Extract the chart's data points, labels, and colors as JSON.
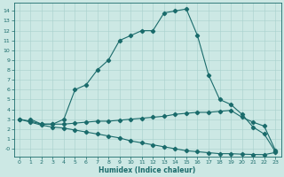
{
  "xlabel": "Humidex (Indice chaleur)",
  "bg_color": "#cce8e4",
  "line_color": "#1a6b6b",
  "grid_color": "#a8d0cc",
  "xlim": [
    -0.5,
    23.5
  ],
  "ylim": [
    -0.8,
    14.8
  ],
  "xticks": [
    0,
    1,
    2,
    3,
    4,
    5,
    6,
    7,
    8,
    9,
    10,
    11,
    12,
    13,
    14,
    15,
    16,
    17,
    18,
    19,
    20,
    21,
    22,
    23
  ],
  "yticks": [
    0,
    1,
    2,
    3,
    4,
    5,
    6,
    7,
    8,
    9,
    10,
    11,
    12,
    13,
    14
  ],
  "ytick_labels": [
    "-0",
    "1",
    "2",
    "3",
    "4",
    "5",
    "6",
    "7",
    "8",
    "9",
    "10",
    "11",
    "12",
    "13",
    "14"
  ],
  "line1_x": [
    1,
    2,
    3,
    4,
    5,
    6,
    7,
    8,
    9,
    10,
    11,
    12,
    13,
    14,
    15,
    16,
    17,
    18,
    19,
    20,
    21,
    22,
    23
  ],
  "line1_y": [
    3.0,
    2.5,
    2.5,
    3.0,
    6.0,
    6.5,
    8.0,
    9.0,
    11.0,
    11.5,
    12.0,
    12.0,
    13.8,
    14.0,
    14.2,
    11.5,
    7.5,
    5.0,
    4.5,
    3.5,
    2.2,
    1.5,
    -0.3
  ],
  "line2_x": [
    0,
    1,
    2,
    3,
    4,
    5,
    6,
    7,
    8,
    9,
    10,
    11,
    12,
    13,
    14,
    15,
    16,
    17,
    18,
    19,
    20,
    21,
    22,
    23
  ],
  "line2_y": [
    3.0,
    2.8,
    2.5,
    2.5,
    2.5,
    2.6,
    2.7,
    2.8,
    2.8,
    2.9,
    3.0,
    3.1,
    3.2,
    3.3,
    3.5,
    3.6,
    3.7,
    3.7,
    3.8,
    3.9,
    3.2,
    2.7,
    2.3,
    -0.15
  ],
  "line3_x": [
    0,
    1,
    2,
    3,
    4,
    5,
    6,
    7,
    8,
    9,
    10,
    11,
    12,
    13,
    14,
    15,
    16,
    17,
    18,
    19,
    20,
    21,
    22,
    23
  ],
  "line3_y": [
    3.0,
    2.7,
    2.4,
    2.2,
    2.1,
    1.9,
    1.7,
    1.5,
    1.3,
    1.1,
    0.8,
    0.6,
    0.4,
    0.2,
    0.0,
    -0.2,
    -0.3,
    -0.4,
    -0.5,
    -0.5,
    -0.55,
    -0.58,
    -0.6,
    -0.38
  ]
}
